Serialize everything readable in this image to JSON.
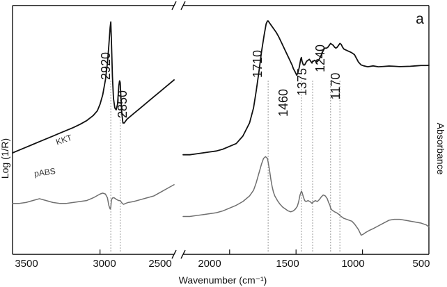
{
  "chart_data": {
    "type": "line",
    "panel_label": "a",
    "xlabel": "Wavenumber (cm⁻¹)",
    "ylabel_left": "Log (1/R)",
    "ylabel_right": "Absorbance",
    "xlim": [
      3650,
      500
    ],
    "x_axis_break": [
      2450,
      2350
    ],
    "x_ticks": [
      3500,
      3000,
      2500,
      2000,
      1500,
      1000,
      500
    ],
    "x_tick_labels": [
      "3500",
      "3000",
      "2500",
      "2000",
      "1500",
      "1000",
      "500"
    ],
    "y_ticks_shown": false,
    "peaks": [
      {
        "label": "2920",
        "x": 2920
      },
      {
        "label": "2850",
        "x": 2850
      },
      {
        "label": "1710",
        "x": 1710
      },
      {
        "label": "1460",
        "x": 1460
      },
      {
        "label": "1375",
        "x": 1375
      },
      {
        "label": "1240",
        "x": 1240
      },
      {
        "label": "1170",
        "x": 1170
      }
    ],
    "series": [
      {
        "name": "KKT",
        "color": "#111111",
        "x": [
          3650,
          3600,
          3550,
          3500,
          3450,
          3400,
          3350,
          3300,
          3250,
          3200,
          3150,
          3100,
          3050,
          3020,
          3000,
          2980,
          2960,
          2945,
          2935,
          2925,
          2920,
          2915,
          2908,
          2900,
          2890,
          2880,
          2870,
          2860,
          2855,
          2850,
          2845,
          2838,
          2830,
          2820,
          2810,
          2800,
          2750,
          2700,
          2650,
          2600,
          2550,
          2500,
          2450,
          2350,
          2300,
          2250,
          2200,
          2150,
          2100,
          2050,
          2000,
          1950,
          1900,
          1850,
          1820,
          1800,
          1780,
          1760,
          1740,
          1725,
          1715,
          1710,
          1705,
          1695,
          1685,
          1670,
          1650,
          1630,
          1610,
          1590,
          1570,
          1550,
          1530,
          1520,
          1505,
          1495,
          1485,
          1475,
          1465,
          1460,
          1455,
          1445,
          1435,
          1420,
          1400,
          1390,
          1380,
          1375,
          1370,
          1360,
          1345,
          1330,
          1315,
          1300,
          1285,
          1270,
          1260,
          1250,
          1240,
          1230,
          1220,
          1210,
          1200,
          1190,
          1180,
          1170,
          1160,
          1150,
          1140,
          1125,
          1110,
          1095,
          1080,
          1060,
          1045,
          1030,
          1010,
          990,
          960,
          920,
          880,
          840,
          800,
          760,
          720,
          680,
          640,
          600,
          560,
          520,
          500
        ],
        "y": [
          0.17,
          0.185,
          0.2,
          0.215,
          0.23,
          0.245,
          0.26,
          0.275,
          0.29,
          0.305,
          0.322,
          0.342,
          0.37,
          0.395,
          0.43,
          0.48,
          0.56,
          0.65,
          0.74,
          0.84,
          0.87,
          0.76,
          0.58,
          0.46,
          0.41,
          0.4,
          0.43,
          0.53,
          0.555,
          0.545,
          0.47,
          0.38,
          0.33,
          0.33,
          0.34,
          0.35,
          0.38,
          0.41,
          0.44,
          0.47,
          0.5,
          0.53,
          0.56,
          0.16,
          0.16,
          0.165,
          0.17,
          0.175,
          0.18,
          0.19,
          0.205,
          0.22,
          0.26,
          0.33,
          0.41,
          0.5,
          0.6,
          0.71,
          0.8,
          0.86,
          0.875,
          0.875,
          0.87,
          0.86,
          0.85,
          0.835,
          0.815,
          0.79,
          0.76,
          0.73,
          0.7,
          0.67,
          0.64,
          0.62,
          0.6,
          0.585,
          0.6,
          0.63,
          0.67,
          0.68,
          0.66,
          0.64,
          0.64,
          0.66,
          0.67,
          0.66,
          0.65,
          0.66,
          0.66,
          0.665,
          0.655,
          0.665,
          0.685,
          0.71,
          0.73,
          0.73,
          0.735,
          0.745,
          0.755,
          0.75,
          0.745,
          0.735,
          0.73,
          0.735,
          0.745,
          0.755,
          0.75,
          0.735,
          0.725,
          0.72,
          0.715,
          0.71,
          0.705,
          0.695,
          0.675,
          0.655,
          0.64,
          0.635,
          0.63,
          0.635,
          0.63,
          0.632,
          0.634,
          0.633,
          0.631,
          0.632,
          0.633,
          0.635,
          0.637,
          0.637,
          0.638
        ]
      },
      {
        "name": "pABS",
        "color": "#6f6f6f",
        "x": [
          3650,
          3600,
          3550,
          3500,
          3450,
          3400,
          3350,
          3300,
          3250,
          3200,
          3150,
          3100,
          3050,
          3000,
          2980,
          2960,
          2945,
          2935,
          2925,
          2920,
          2915,
          2905,
          2895,
          2885,
          2875,
          2860,
          2850,
          2845,
          2835,
          2825,
          2810,
          2790,
          2750,
          2700,
          2650,
          2600,
          2550,
          2500,
          2450,
          2350,
          2300,
          2250,
          2200,
          2150,
          2100,
          2050,
          2000,
          1950,
          1900,
          1850,
          1820,
          1800,
          1780,
          1760,
          1745,
          1730,
          1715,
          1710,
          1700,
          1690,
          1680,
          1670,
          1660,
          1640,
          1620,
          1600,
          1580,
          1560,
          1540,
          1520,
          1505,
          1490,
          1480,
          1470,
          1460,
          1455,
          1445,
          1435,
          1425,
          1410,
          1395,
          1380,
          1375,
          1365,
          1355,
          1340,
          1325,
          1310,
          1295,
          1280,
          1265,
          1255,
          1245,
          1240,
          1230,
          1220,
          1210,
          1195,
          1185,
          1175,
          1170,
          1160,
          1150,
          1140,
          1120,
          1100,
          1080,
          1060,
          1045,
          1030,
          1020,
          1010,
          995,
          975,
          950,
          920,
          880,
          840,
          800,
          760,
          720,
          680,
          640,
          600,
          560,
          520,
          500
        ],
        "y": [
          -0.1,
          -0.1,
          -0.095,
          -0.085,
          -0.075,
          -0.085,
          -0.095,
          -0.1,
          -0.1,
          -0.095,
          -0.09,
          -0.085,
          -0.07,
          -0.05,
          -0.045,
          -0.05,
          -0.07,
          -0.11,
          -0.13,
          -0.12,
          -0.08,
          -0.07,
          -0.07,
          -0.075,
          -0.08,
          -0.085,
          -0.085,
          -0.09,
          -0.1,
          -0.105,
          -0.1,
          -0.095,
          -0.09,
          -0.08,
          -0.07,
          -0.06,
          -0.04,
          -0.02,
          0.0,
          -0.17,
          -0.17,
          -0.165,
          -0.16,
          -0.155,
          -0.15,
          -0.14,
          -0.125,
          -0.11,
          -0.09,
          -0.06,
          -0.03,
          0.01,
          0.06,
          0.11,
          0.14,
          0.15,
          0.14,
          0.12,
          0.08,
          0.03,
          -0.01,
          -0.04,
          -0.06,
          -0.085,
          -0.105,
          -0.12,
          -0.13,
          -0.14,
          -0.145,
          -0.14,
          -0.13,
          -0.115,
          -0.09,
          -0.055,
          -0.035,
          -0.04,
          -0.065,
          -0.085,
          -0.09,
          -0.085,
          -0.09,
          -0.1,
          -0.095,
          -0.09,
          -0.085,
          -0.09,
          -0.08,
          -0.065,
          -0.055,
          -0.06,
          -0.075,
          -0.095,
          -0.11,
          -0.125,
          -0.135,
          -0.14,
          -0.145,
          -0.15,
          -0.155,
          -0.16,
          -0.165,
          -0.17,
          -0.175,
          -0.18,
          -0.185,
          -0.19,
          -0.195,
          -0.21,
          -0.225,
          -0.24,
          -0.255,
          -0.27,
          -0.265,
          -0.255,
          -0.245,
          -0.235,
          -0.22,
          -0.205,
          -0.19,
          -0.185,
          -0.185,
          -0.19,
          -0.195,
          -0.2,
          -0.205,
          -0.215,
          -0.225
        ]
      }
    ]
  }
}
